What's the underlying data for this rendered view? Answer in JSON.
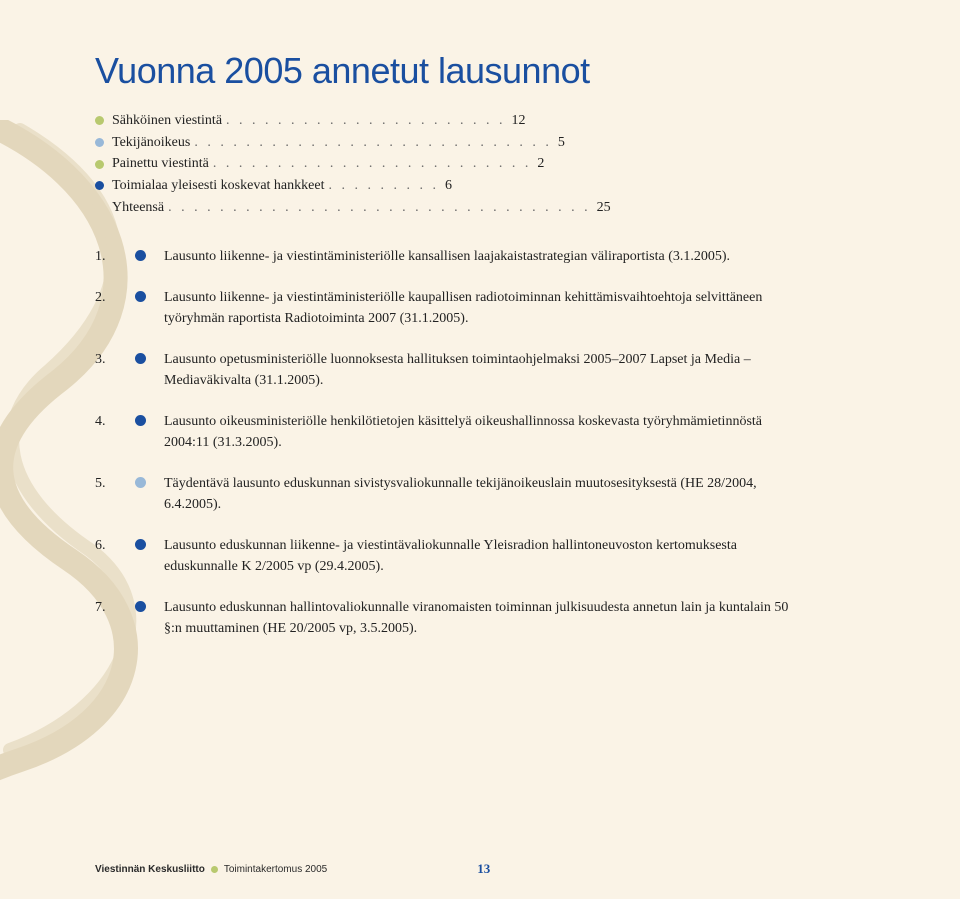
{
  "title": "Vuonna 2005 annetut lausunnot",
  "colors": {
    "title": "#1a4fa0",
    "background": "#faf3e6",
    "text": "#222222",
    "swirl": "#c9b68a",
    "bullet_green": "#b8c96f",
    "bullet_lightblue": "#98b8d8",
    "bullet_darkblue": "#1a4fa0",
    "footer_accent": "#b8c96f"
  },
  "summary": [
    {
      "label": "Sähköinen viestintä",
      "count": "12",
      "bullet_color": "#b8c96f",
      "dots": ". . . . . . . . . . . . . . . . . . . . . ."
    },
    {
      "label": "Tekijänoikeus",
      "count": "5",
      "bullet_color": "#98b8d8",
      "dots": ". . . . . . . . . . . . . . . . . . . . . . . . . . . ."
    },
    {
      "label": "Painettu viestintä",
      "count": "2",
      "bullet_color": "#b8c96f",
      "dots": ". . . . . . . . . . . . . . . . . . . . . . . . ."
    },
    {
      "label": "Toimialaa yleisesti koskevat hankkeet",
      "count": "6",
      "bullet_color": "#1a4fa0",
      "dots": ". . . . . . . . ."
    },
    {
      "label": "Yhteensä",
      "count": "25",
      "bullet_color": null,
      "dots": ". . . . . . . . . . . . . . . . . . . . . . . . . . . . . . . . ."
    }
  ],
  "items": [
    {
      "num": "1.",
      "bullet_color": "#1a4fa0",
      "text": "Lausunto liikenne- ja viestintäministeriölle kansallisen laajakaistastrategian väliraportista (3.1.2005)."
    },
    {
      "num": "2.",
      "bullet_color": "#1a4fa0",
      "text": "Lausunto liikenne- ja viestintäministeriölle kaupallisen radiotoiminnan kehittämisvaihtoehtoja selvittäneen työryhmän raportista Radiotoiminta 2007 (31.1.2005)."
    },
    {
      "num": "3.",
      "bullet_color": "#1a4fa0",
      "text": "Lausunto opetusministeriölle luonnoksesta hallituksen toimintaohjelmaksi 2005–2007 Lapset ja Media – Mediaväkivalta (31.1.2005)."
    },
    {
      "num": "4.",
      "bullet_color": "#1a4fa0",
      "text": "Lausunto oikeusministeriölle henkilötietojen käsittelyä oikeushallinnossa koskevasta työryhmämietinnöstä 2004:11 (31.3.2005)."
    },
    {
      "num": "5.",
      "bullet_color": "#98b8d8",
      "text": "Täydentävä lausunto eduskunnan sivistysvaliokunnalle tekijänoikeuslain muutosesityksestä (HE 28/2004, 6.4.2005)."
    },
    {
      "num": "6.",
      "bullet_color": "#1a4fa0",
      "text": "Lausunto eduskunnan liikenne- ja viestintävaliokunnalle Yleisradion hallintoneuvoston kertomuksesta eduskunnalle K 2/2005 vp (29.4.2005)."
    },
    {
      "num": "7.",
      "bullet_color": "#1a4fa0",
      "text": "Lausunto eduskunnan hallintovaliokunnalle viranomaisten toiminnan julkisuudesta annetun lain ja kuntalain 50 §:n muuttaminen (HE 20/2005 vp, 3.5.2005)."
    }
  ],
  "footer": {
    "org": "Viestinnän Keskusliitto",
    "doc": "Toimintakertomus 2005",
    "page": "13"
  }
}
